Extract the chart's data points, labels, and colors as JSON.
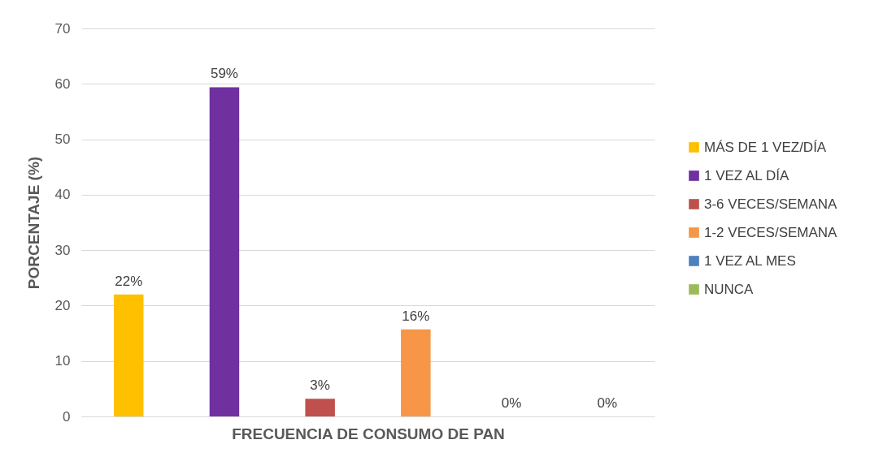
{
  "chart_data": {
    "type": "bar",
    "xlabel": "FRECUENCIA DE CONSUMO DE PAN",
    "ylabel": "PORCENTAJE (%)",
    "categories": [
      null,
      null,
      null,
      null,
      null,
      null
    ],
    "series": [
      {
        "name": "MÁS DE 1 VEZ/DÍA",
        "color": "#ffc000",
        "values": [
          22,
          null,
          null,
          null,
          null,
          null
        ],
        "value_labels": [
          "22%",
          null,
          null,
          null,
          null,
          null
        ]
      },
      {
        "name": "1 VEZ AL DÍA",
        "color": "#7030a0",
        "values": [
          null,
          59.4,
          null,
          null,
          null,
          null
        ],
        "value_labels": [
          null,
          "59%",
          null,
          null,
          null,
          null
        ]
      },
      {
        "name": "3-6 VECES/SEMANA",
        "color": "#c0504d",
        "values": [
          null,
          null,
          3.2,
          null,
          null,
          null
        ],
        "value_labels": [
          null,
          null,
          "3%",
          null,
          null,
          null
        ]
      },
      {
        "name": "1-2 VECES/SEMANA",
        "color": "#f79646",
        "values": [
          null,
          null,
          null,
          15.7,
          null,
          null
        ],
        "value_labels": [
          null,
          null,
          null,
          "16%",
          null,
          null
        ]
      },
      {
        "name": "1 VEZ AL MES",
        "color": "#4f81bd",
        "values": [
          null,
          null,
          null,
          null,
          0,
          null
        ],
        "value_labels": [
          null,
          null,
          null,
          null,
          "0%",
          null
        ]
      },
      {
        "name": "NUNCA",
        "color": "#9bbb59",
        "values": [
          null,
          null,
          null,
          null,
          null,
          0
        ],
        "value_labels": [
          null,
          null,
          null,
          null,
          null,
          "0%"
        ]
      }
    ],
    "ylim": [
      0,
      70
    ],
    "yticks": [
      0,
      10,
      20,
      30,
      40,
      50,
      60,
      70
    ],
    "grid": "y",
    "legend": "right"
  }
}
